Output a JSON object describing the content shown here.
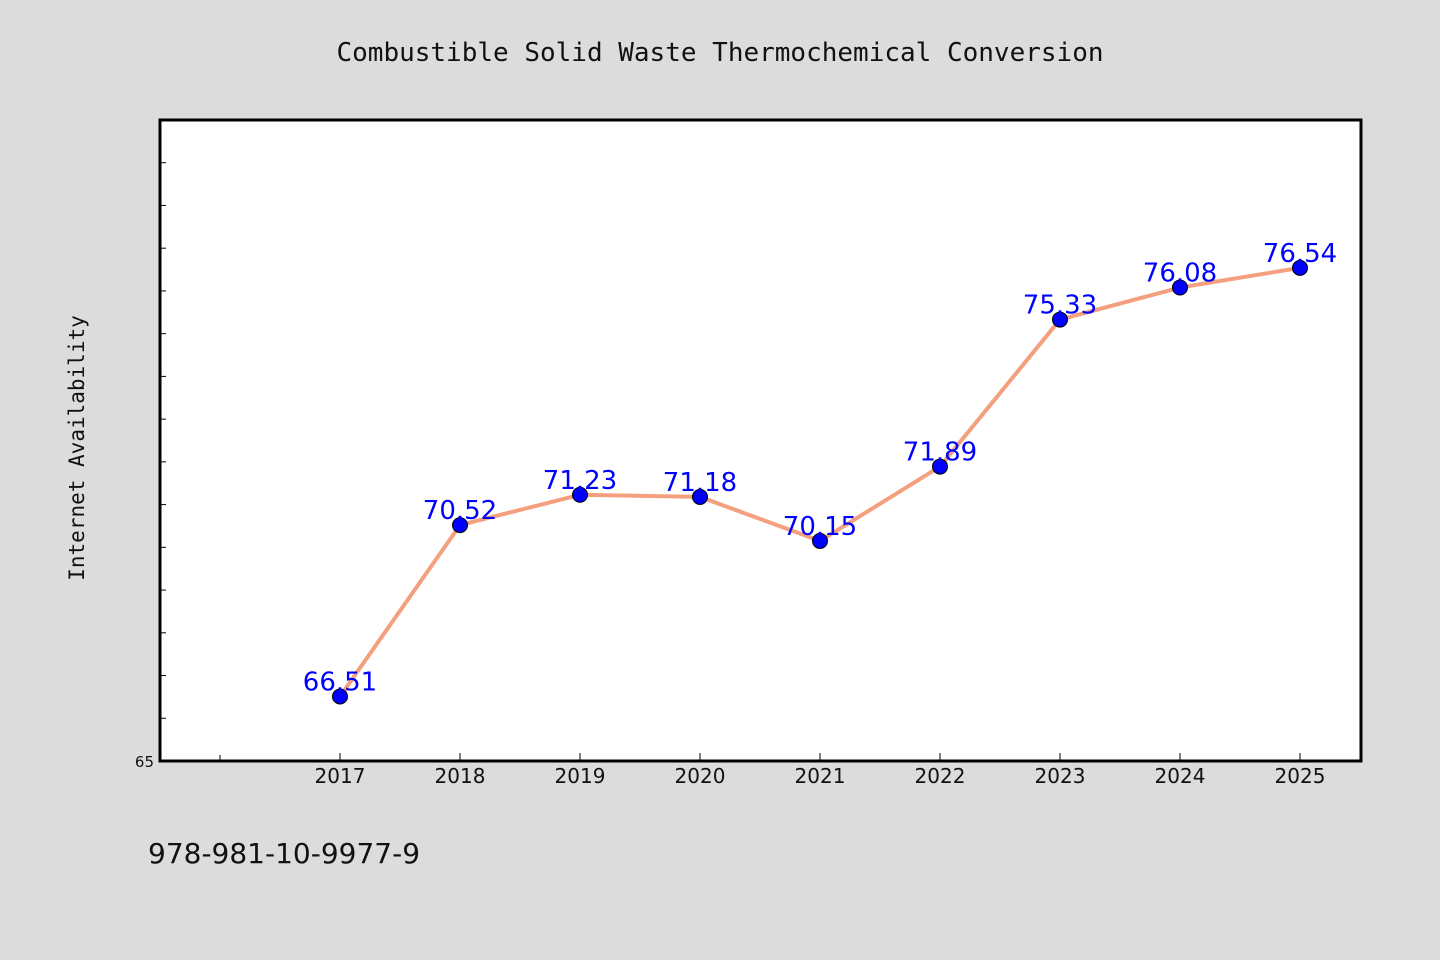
{
  "chart_data": {
    "type": "line",
    "title": "Combustible Solid Waste Thermochemical Conversion",
    "xlabel": "",
    "ylabel": "Internet Availability",
    "categories": [
      "2017",
      "2018",
      "2019",
      "2020",
      "2021",
      "2022",
      "2023",
      "2024",
      "2025"
    ],
    "values": [
      66.51,
      70.52,
      71.23,
      71.18,
      70.15,
      71.89,
      75.33,
      76.08,
      76.54
    ],
    "data_labels": [
      "66.51",
      "70.52",
      "71.23",
      "71.18",
      "70.15",
      "71.89",
      "75.33",
      "76.08",
      "76.54"
    ],
    "ylim": [
      65,
      80
    ],
    "ytick_labels": [
      "65"
    ],
    "grid": false,
    "line_color": "#f4a07f",
    "marker_color": "#0000ff",
    "label_color": "#0000ff"
  },
  "footer": {
    "isbn": "978-981-10-9977-9"
  },
  "colors": {
    "background": "#dcdcdc",
    "plot_background": "#ffffff"
  }
}
